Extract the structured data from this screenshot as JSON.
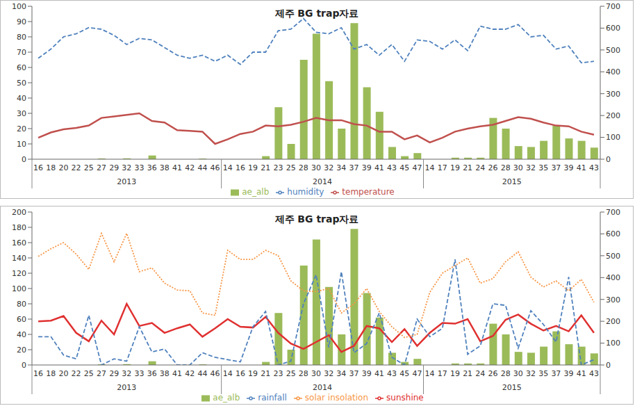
{
  "chart_data": [
    {
      "type": "bar",
      "title": "제주 BG trap자료",
      "categories": [
        "16",
        "18",
        "20",
        "22",
        "25",
        "27",
        "29",
        "32",
        "33",
        "36",
        "38",
        "41",
        "42",
        "44",
        "46",
        "14",
        "16",
        "19",
        "21",
        "23",
        "25",
        "28",
        "30",
        "32",
        "34",
        "37",
        "39",
        "41",
        "43",
        "45",
        "47",
        "14",
        "17",
        "19",
        "21",
        "24",
        "26",
        "28",
        "30",
        "32",
        "35",
        "37",
        "39",
        "41",
        "43"
      ],
      "category_groups": [
        "2013",
        "2013",
        "2013",
        "2013",
        "2013",
        "2013",
        "2013",
        "2013",
        "2013",
        "2013",
        "2013",
        "2013",
        "2013",
        "2013",
        "2013",
        "2014",
        "2014",
        "2014",
        "2014",
        "2014",
        "2014",
        "2014",
        "2014",
        "2014",
        "2014",
        "2014",
        "2014",
        "2014",
        "2014",
        "2014",
        "2014",
        "2015",
        "2015",
        "2015",
        "2015",
        "2015",
        "2015",
        "2015",
        "2015",
        "2015",
        "2015",
        "2015",
        "2015",
        "2015",
        "2015"
      ],
      "series": [
        {
          "name": "ae_alb",
          "type": "bar",
          "axis": "y2",
          "color": "#9bbb59",
          "values": [
            0,
            0,
            0,
            0,
            0,
            3.5,
            0,
            4,
            0,
            17,
            0,
            0,
            0,
            3,
            0,
            0,
            0,
            0,
            14,
            238,
            70,
            455,
            574,
            357,
            140,
            623,
            329,
            217,
            56,
            14,
            28,
            0,
            0,
            7,
            7,
            7,
            189,
            140,
            60,
            56,
            84,
            154,
            95,
            84,
            53
          ]
        },
        {
          "name": "temperature",
          "type": "line",
          "color": "#c0504d",
          "line_style": "solid",
          "marker": "none",
          "values": [
            14,
            17.5,
            19.5,
            20.5,
            22,
            27,
            28,
            29,
            30,
            25,
            24,
            19,
            18.5,
            18,
            10,
            13,
            16.5,
            18,
            22,
            21.5,
            22.5,
            24.5,
            27,
            25.5,
            25.5,
            23,
            22,
            18,
            18,
            13,
            15.5,
            11,
            14,
            18,
            20,
            21.5,
            22.5,
            25,
            27.5,
            26.5,
            24,
            22,
            21.5,
            18,
            16
          ]
        },
        {
          "name": "humidity",
          "type": "line",
          "color": "#4f81bd",
          "line_style": "dashed",
          "marker": "none",
          "values": [
            66,
            72,
            80,
            82,
            86,
            85,
            81,
            75,
            79,
            78,
            73,
            68,
            66,
            68,
            64,
            68,
            62,
            70,
            70,
            84,
            85,
            92,
            83,
            82,
            86,
            72,
            75,
            68,
            75,
            64,
            78,
            77,
            72,
            78,
            71,
            87,
            85,
            85,
            88,
            80,
            81,
            72,
            74,
            63,
            64
          ]
        }
      ],
      "ylim": [
        0,
        100
      ],
      "yticks": [
        0,
        10,
        20,
        30,
        40,
        50,
        60,
        70,
        80,
        90,
        100
      ],
      "y2lim": [
        0,
        700
      ],
      "y2ticks": [
        0,
        100,
        200,
        300,
        400,
        500,
        600,
        700
      ],
      "grid": false,
      "legend": "bottom"
    },
    {
      "type": "bar",
      "title": "제주 BG trap자료",
      "categories": [
        "16",
        "18",
        "20",
        "22",
        "25",
        "27",
        "29",
        "32",
        "33",
        "36",
        "38",
        "41",
        "42",
        "44",
        "46",
        "14",
        "16",
        "19",
        "21",
        "23",
        "25",
        "28",
        "30",
        "32",
        "34",
        "37",
        "39",
        "41",
        "43",
        "45",
        "47",
        "14",
        "17",
        "19",
        "21",
        "24",
        "26",
        "28",
        "30",
        "32",
        "35",
        "37",
        "39",
        "41",
        "43"
      ],
      "category_groups": [
        "2013",
        "2013",
        "2013",
        "2013",
        "2013",
        "2013",
        "2013",
        "2013",
        "2013",
        "2013",
        "2013",
        "2013",
        "2013",
        "2013",
        "2013",
        "2014",
        "2014",
        "2014",
        "2014",
        "2014",
        "2014",
        "2014",
        "2014",
        "2014",
        "2014",
        "2014",
        "2014",
        "2014",
        "2014",
        "2014",
        "2014",
        "2015",
        "2015",
        "2015",
        "2015",
        "2015",
        "2015",
        "2015",
        "2015",
        "2015",
        "2015",
        "2015",
        "2015",
        "2015",
        "2015"
      ],
      "series": [
        {
          "name": "ae_alb",
          "type": "bar",
          "axis": "y2",
          "color": "#9bbb59",
          "values": [
            0,
            0,
            0,
            0,
            0,
            3.5,
            0,
            4,
            0,
            17,
            0,
            0,
            0,
            3,
            0,
            0,
            0,
            0,
            14,
            238,
            70,
            455,
            574,
            357,
            140,
            623,
            329,
            217,
            56,
            14,
            28,
            0,
            0,
            7,
            7,
            7,
            189,
            140,
            60,
            56,
            84,
            154,
            95,
            84,
            53
          ]
        },
        {
          "name": "sunshine",
          "type": "line",
          "color": "#e03030",
          "line_style": "solid",
          "marker": "none",
          "values": [
            57,
            58,
            64,
            42,
            31,
            58,
            40,
            80,
            51,
            55,
            42,
            48,
            53,
            37,
            48,
            60,
            50,
            49,
            63,
            42,
            28,
            21,
            30,
            39,
            17,
            25,
            51,
            48,
            30,
            47,
            25,
            42,
            55,
            54,
            60,
            31,
            38,
            59,
            66,
            54,
            45,
            51,
            44,
            65,
            42
          ]
        },
        {
          "name": "rainfall",
          "type": "line",
          "color": "#4f81bd",
          "line_style": "dashed",
          "marker": "none",
          "values": [
            37,
            37,
            13,
            8,
            65,
            0,
            8,
            5,
            50,
            17,
            21,
            0,
            0,
            16,
            10,
            7,
            4,
            50,
            70,
            0,
            5,
            80,
            118,
            23,
            122,
            16,
            28,
            68,
            10,
            0,
            60,
            37,
            48,
            138,
            14,
            25,
            80,
            78,
            22,
            71,
            53,
            30,
            115,
            0,
            7
          ]
        },
        {
          "name": "solar insolation",
          "type": "line",
          "color": "#f79646",
          "line_style": "dotted",
          "marker": "none",
          "values": [
            142,
            152,
            160,
            145,
            125,
            172,
            135,
            172,
            122,
            127,
            107,
            98,
            97,
            68,
            65,
            150,
            138,
            138,
            150,
            143,
            110,
            97,
            96,
            100,
            68,
            80,
            100,
            70,
            50,
            36,
            40,
            95,
            120,
            130,
            140,
            107,
            113,
            135,
            148,
            115,
            102,
            110,
            97,
            112,
            82
          ]
        }
      ],
      "ylim": [
        0,
        200
      ],
      "yticks": [
        0,
        20,
        40,
        60,
        80,
        100,
        120,
        140,
        160,
        180,
        200
      ],
      "y2lim": [
        0,
        700
      ],
      "y2ticks": [
        0,
        100,
        200,
        300,
        400,
        500,
        600,
        700
      ],
      "grid": false,
      "legend": "bottom"
    }
  ]
}
